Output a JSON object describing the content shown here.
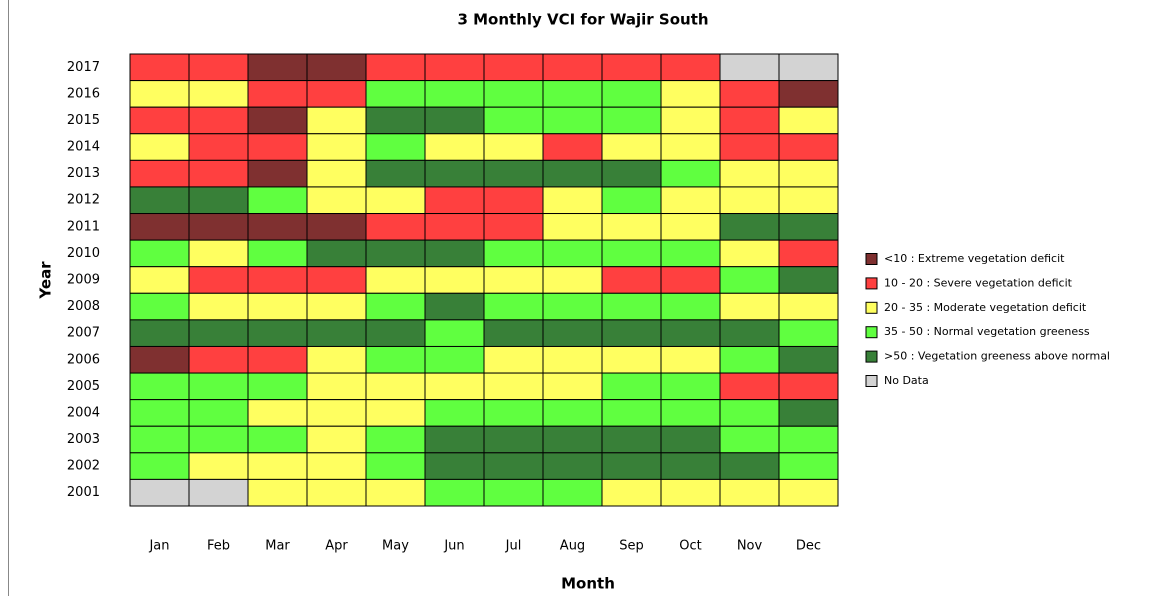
{
  "chart_data": {
    "type": "heatmap",
    "title": "3 Monthly VCI for Wajir South",
    "x_label": "Month",
    "y_label": "Year",
    "categories": [
      "Jan",
      "Feb",
      "Mar",
      "Apr",
      "May",
      "Jun",
      "Jul",
      "Aug",
      "Sep",
      "Oct",
      "Nov",
      "Dec"
    ],
    "legend": [
      {
        "name": "<10 : Extreme vegetation deficit",
        "color": "#7f3030"
      },
      {
        "name": "10 - 20 : Severe vegetation deficit",
        "color": "#ff4040"
      },
      {
        "name": "20 - 35 : Moderate vegetation deficit",
        "color": "#ffff60"
      },
      {
        "name": "35 - 50 : Normal vegetation greeness",
        "color": "#60ff40"
      },
      {
        "name": ">50 : Vegetation greeness above normal",
        "color": "#388038"
      },
      {
        "name": "No Data",
        "color": "#d3d3d3"
      }
    ],
    "rows": [
      {
        "year": "2017",
        "cells": [
          "#ff4040",
          "#ff4040",
          "#7f3030",
          "#7f3030",
          "#ff4040",
          "#ff4040",
          "#ff4040",
          "#ff4040",
          "#ff4040",
          "#ff4040",
          "#d3d3d3",
          "#d3d3d3"
        ]
      },
      {
        "year": "2016",
        "cells": [
          "#ffff60",
          "#ffff60",
          "#ff4040",
          "#ff4040",
          "#60ff40",
          "#60ff40",
          "#60ff40",
          "#60ff40",
          "#60ff40",
          "#ffff60",
          "#ff4040",
          "#7f3030"
        ]
      },
      {
        "year": "2015",
        "cells": [
          "#ff4040",
          "#ff4040",
          "#7f3030",
          "#ffff60",
          "#388038",
          "#388038",
          "#60ff40",
          "#60ff40",
          "#60ff40",
          "#ffff60",
          "#ff4040",
          "#ffff60"
        ]
      },
      {
        "year": "2014",
        "cells": [
          "#ffff60",
          "#ff4040",
          "#ff4040",
          "#ffff60",
          "#60ff40",
          "#ffff60",
          "#ffff60",
          "#ff4040",
          "#ffff60",
          "#ffff60",
          "#ff4040",
          "#ff4040"
        ]
      },
      {
        "year": "2013",
        "cells": [
          "#ff4040",
          "#ff4040",
          "#7f3030",
          "#ffff60",
          "#388038",
          "#388038",
          "#388038",
          "#388038",
          "#388038",
          "#60ff40",
          "#ffff60",
          "#ffff60"
        ]
      },
      {
        "year": "2012",
        "cells": [
          "#388038",
          "#388038",
          "#60ff40",
          "#ffff60",
          "#ffff60",
          "#ff4040",
          "#ff4040",
          "#ffff60",
          "#60ff40",
          "#ffff60",
          "#ffff60",
          "#ffff60"
        ]
      },
      {
        "year": "2011",
        "cells": [
          "#7f3030",
          "#7f3030",
          "#7f3030",
          "#7f3030",
          "#ff4040",
          "#ff4040",
          "#ff4040",
          "#ffff60",
          "#ffff60",
          "#ffff60",
          "#388038",
          "#388038"
        ]
      },
      {
        "year": "2010",
        "cells": [
          "#60ff40",
          "#ffff60",
          "#60ff40",
          "#388038",
          "#388038",
          "#388038",
          "#60ff40",
          "#60ff40",
          "#60ff40",
          "#60ff40",
          "#ffff60",
          "#ff4040"
        ]
      },
      {
        "year": "2009",
        "cells": [
          "#ffff60",
          "#ff4040",
          "#ff4040",
          "#ff4040",
          "#ffff60",
          "#ffff60",
          "#ffff60",
          "#ffff60",
          "#ff4040",
          "#ff4040",
          "#60ff40",
          "#388038"
        ]
      },
      {
        "year": "2008",
        "cells": [
          "#60ff40",
          "#ffff60",
          "#ffff60",
          "#ffff60",
          "#60ff40",
          "#388038",
          "#60ff40",
          "#60ff40",
          "#60ff40",
          "#60ff40",
          "#ffff60",
          "#ffff60"
        ]
      },
      {
        "year": "2007",
        "cells": [
          "#388038",
          "#388038",
          "#388038",
          "#388038",
          "#388038",
          "#60ff40",
          "#388038",
          "#388038",
          "#388038",
          "#388038",
          "#388038",
          "#60ff40"
        ]
      },
      {
        "year": "2006",
        "cells": [
          "#7f3030",
          "#ff4040",
          "#ff4040",
          "#ffff60",
          "#60ff40",
          "#60ff40",
          "#ffff60",
          "#ffff60",
          "#ffff60",
          "#ffff60",
          "#60ff40",
          "#388038"
        ]
      },
      {
        "year": "2005",
        "cells": [
          "#60ff40",
          "#60ff40",
          "#60ff40",
          "#ffff60",
          "#ffff60",
          "#ffff60",
          "#ffff60",
          "#ffff60",
          "#60ff40",
          "#60ff40",
          "#ff4040",
          "#ff4040"
        ]
      },
      {
        "year": "2004",
        "cells": [
          "#60ff40",
          "#60ff40",
          "#ffff60",
          "#ffff60",
          "#ffff60",
          "#60ff40",
          "#60ff40",
          "#60ff40",
          "#60ff40",
          "#60ff40",
          "#60ff40",
          "#388038"
        ]
      },
      {
        "year": "2003",
        "cells": [
          "#60ff40",
          "#60ff40",
          "#60ff40",
          "#ffff60",
          "#60ff40",
          "#388038",
          "#388038",
          "#388038",
          "#388038",
          "#388038",
          "#60ff40",
          "#60ff40"
        ]
      },
      {
        "year": "2002",
        "cells": [
          "#60ff40",
          "#ffff60",
          "#ffff60",
          "#ffff60",
          "#60ff40",
          "#388038",
          "#388038",
          "#388038",
          "#388038",
          "#388038",
          "#388038",
          "#60ff40"
        ]
      },
      {
        "year": "2001",
        "cells": [
          "#d3d3d3",
          "#d3d3d3",
          "#ffff60",
          "#ffff60",
          "#ffff60",
          "#60ff40",
          "#60ff40",
          "#60ff40",
          "#ffff60",
          "#ffff60",
          "#ffff60",
          "#ffff60"
        ]
      }
    ]
  }
}
